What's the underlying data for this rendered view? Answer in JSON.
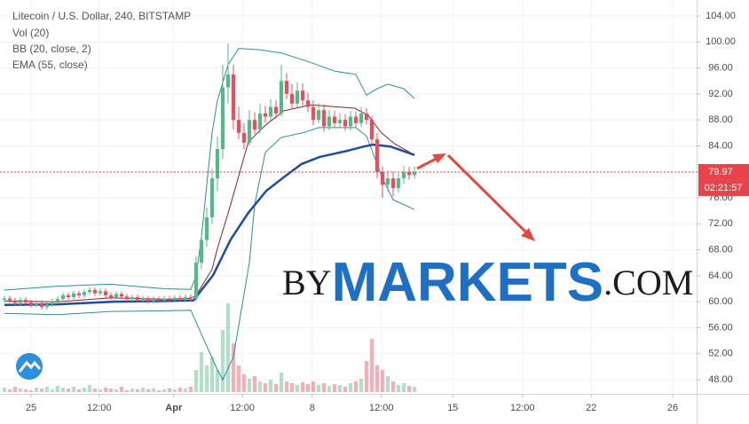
{
  "chart_data": {
    "type": "candlestick",
    "legend": [
      "Litecoin / U.S. Dollar, 240, BITSTAMP",
      "Vol (20)",
      "BB (20, close, 2)",
      "EMA (55, close)"
    ],
    "watermark": {
      "prefix": "BY",
      "main": "MARKETS",
      "suffix": ".COM"
    },
    "x": [
      0,
      1,
      2,
      3,
      4,
      5,
      6,
      7,
      8,
      9,
      10,
      11,
      12,
      13,
      14,
      15,
      16,
      17,
      18,
      19,
      20,
      21,
      22,
      23,
      24,
      25,
      26,
      27,
      28,
      29,
      30,
      31,
      32,
      33,
      34,
      35,
      36,
      37,
      38,
      39,
      40,
      41,
      42,
      43,
      44,
      45,
      46,
      47,
      48,
      49,
      50,
      51,
      52,
      53,
      54,
      55,
      56,
      57,
      58,
      59,
      60,
      61,
      62,
      63,
      64,
      65,
      66,
      67,
      68,
      69,
      70,
      71,
      72,
      73,
      74,
      75,
      76,
      77
    ],
    "open": [
      60.3,
      60.5,
      60.2,
      59.8,
      60.3,
      59.9,
      59.5,
      59.8,
      59.2,
      59.6,
      60.1,
      60.4,
      61.0,
      60.7,
      61.3,
      61.0,
      61.5,
      61.8,
      61.3,
      61.6,
      61.0,
      60.7,
      61.2,
      60.8,
      60.4,
      60.7,
      60.3,
      60.5,
      60.1,
      60.4,
      60.2,
      60.5,
      60.3,
      60.6,
      60.4,
      60.7,
      60.5,
      66,
      69.5,
      73,
      79,
      83.5,
      93,
      95,
      88,
      86,
      84.5,
      88,
      86.5,
      89,
      88.5,
      90,
      89,
      94,
      92,
      90.5,
      92.5,
      91,
      90,
      88,
      89.5,
      87,
      88.5,
      87.5,
      88,
      87,
      88.5,
      87.5,
      89,
      88,
      85,
      80,
      78,
      79,
      77.5,
      79,
      80,
      79.5
    ],
    "high": [
      60.9,
      60.9,
      60.6,
      60.7,
      60.7,
      60.3,
      60.2,
      60.2,
      60.0,
      60.5,
      60.8,
      61.4,
      61.4,
      61.7,
      61.7,
      61.9,
      62.2,
      62.2,
      62.0,
      62.0,
      61.4,
      61.6,
      61.6,
      61.2,
      61.1,
      61.1,
      60.9,
      60.9,
      60.8,
      60.8,
      60.9,
      60.9,
      61.0,
      61.0,
      61.1,
      61.1,
      67.0,
      70.5,
      74.5,
      80.5,
      85.5,
      96.5,
      99.8,
      96.5,
      90.0,
      87.5,
      89.5,
      89.2,
      90.5,
      90.2,
      91.2,
      91.0,
      96.5,
      95.2,
      93.5,
      93.8,
      93.6,
      92.2,
      91.0,
      90.5,
      90.4,
      89.5,
      89.4,
      89.0,
      88.9,
      89.4,
      89.3,
      90.0,
      89.8,
      88.6,
      86.0,
      80.8,
      80.2,
      80.0,
      79.8,
      80.9,
      80.8,
      80.8
    ],
    "low": [
      59.9,
      59.8,
      59.4,
      59.4,
      59.5,
      59.1,
      59.1,
      58.8,
      58.8,
      59.2,
      59.7,
      60.0,
      60.3,
      60.3,
      60.6,
      60.6,
      61.1,
      60.9,
      60.9,
      60.6,
      60.3,
      60.3,
      60.4,
      60.0,
      60.0,
      59.9,
      59.9,
      59.7,
      59.7,
      59.8,
      59.8,
      59.9,
      59.9,
      60.0,
      60.0,
      60.1,
      60.1,
      65.0,
      68.5,
      72.0,
      77.0,
      82.0,
      90.5,
      86.5,
      85.0,
      83.5,
      84.0,
      85.8,
      85.9,
      87.5,
      87.9,
      88.2,
      88.5,
      91.2,
      89.8,
      89.9,
      90.2,
      89.2,
      87.2,
      87.5,
      86.2,
      86.4,
      86.8,
      86.9,
      86.3,
      86.4,
      86.8,
      86.9,
      87.3,
      84.2,
      79.0,
      76.0,
      77.0,
      76.2,
      76.8,
      78.2,
      78.8,
      78.9
    ],
    "close": [
      60.5,
      60.2,
      59.8,
      60.3,
      59.9,
      59.5,
      59.8,
      59.2,
      59.6,
      60.1,
      60.4,
      61.0,
      60.7,
      61.3,
      61.0,
      61.5,
      61.8,
      61.3,
      61.6,
      61.0,
      60.7,
      61.2,
      60.8,
      60.4,
      60.7,
      60.3,
      60.5,
      60.1,
      60.4,
      60.2,
      60.5,
      60.3,
      60.6,
      60.4,
      60.7,
      60.5,
      66,
      69.5,
      73,
      79,
      83.5,
      93,
      95,
      88,
      86,
      84.5,
      88,
      86.5,
      89,
      88.5,
      90,
      89,
      94,
      92,
      90.5,
      92.5,
      91,
      90,
      88,
      89.5,
      87,
      88.5,
      87.5,
      88,
      87,
      88.5,
      87.5,
      89,
      88,
      85,
      80,
      78,
      79,
      77.5,
      79,
      80,
      79.5,
      79.97
    ],
    "volume": [
      5,
      3,
      6,
      4,
      3,
      2,
      5,
      4,
      6,
      3,
      7,
      5,
      4,
      6,
      3,
      5,
      8,
      4,
      3,
      5,
      4,
      3,
      6,
      2,
      4,
      3,
      5,
      3,
      4,
      2,
      3,
      4,
      3,
      5,
      4,
      6,
      25,
      45,
      30,
      40,
      25,
      70,
      100,
      55,
      30,
      20,
      15,
      18,
      12,
      10,
      14,
      9,
      22,
      12,
      10,
      8,
      11,
      9,
      12,
      8,
      10,
      7,
      9,
      8,
      6,
      10,
      12,
      15,
      35,
      60,
      30,
      25,
      18,
      12,
      8,
      10,
      7,
      6
    ],
    "up_color": "#53b987",
    "down_color": "#eb4d5c",
    "lines": [
      {
        "color": "#2a8f96",
        "width": 1,
        "x": [
          0,
          10,
          20,
          30,
          35,
          36,
          37,
          38,
          39,
          40,
          42,
          44,
          48,
          52,
          57,
          62,
          66,
          68,
          70,
          72,
          75,
          77
        ],
        "values": [
          61.8,
          62.4,
          62.7,
          62.0,
          61.9,
          64,
          70,
          78,
          86,
          91,
          96.5,
          99,
          98.8,
          98.3,
          97.0,
          95.5,
          95.0,
          91.8,
          92.8,
          93.5,
          92.8,
          91.3
        ]
      },
      {
        "color": "#2a8f96",
        "width": 1,
        "x": [
          0,
          10,
          20,
          30,
          35,
          37,
          40,
          41,
          43,
          46,
          47,
          49,
          52,
          56,
          59,
          66,
          68,
          71,
          73,
          77
        ],
        "values": [
          58.2,
          58.0,
          58.5,
          58.6,
          58.7,
          55,
          49.5,
          48.0,
          51.5,
          66,
          75,
          83,
          85.3,
          86.0,
          86.8,
          86.8,
          85.5,
          79,
          75.7,
          74.2
        ]
      },
      {
        "color": "#8b2323",
        "width": 1,
        "x": [
          0,
          10,
          20,
          30,
          35,
          36,
          39,
          40,
          42.5,
          45.8,
          49.2,
          52.5,
          57.5,
          62.5,
          65.8,
          68.3,
          70.8,
          73.3,
          77
        ],
        "values": [
          60.1,
          60.0,
          60.6,
          60.4,
          60.5,
          61,
          65,
          68.2,
          75,
          84.6,
          87.3,
          89.4,
          90.3,
          90.0,
          89.8,
          88.7,
          86.0,
          84.3,
          82.6
        ]
      },
      {
        "color": "#1f4aa8",
        "width": 2.5,
        "x": [
          0,
          10,
          20,
          30,
          35.5,
          39.2,
          42.5,
          45.8,
          49.2,
          52.5,
          55.8,
          59.2,
          64.2,
          67.5,
          69.2,
          72.5,
          77
        ],
        "values": [
          59.5,
          59.6,
          60.0,
          60.1,
          60.2,
          64.1,
          69.6,
          73.7,
          77.1,
          79.2,
          81.2,
          82.3,
          83.2,
          83.9,
          84.2,
          83.9,
          82.6
        ]
      }
    ],
    "last_price": 79.97,
    "countdown": "02:21:57",
    "last_price_color": "#e8434a",
    "xlim": [
      -0.83,
      130
    ],
    "ylim": [
      46.09,
      106.46
    ],
    "xticks": [
      {
        "value": 5,
        "label": "25"
      },
      {
        "value": 17.8,
        "label": "12:00"
      },
      {
        "value": 31.8,
        "label": "Apr"
      },
      {
        "value": 44.7,
        "label": "12:00"
      },
      {
        "value": 57.8,
        "label": "8"
      },
      {
        "value": 70.8,
        "label": "12:00"
      },
      {
        "value": 84.2,
        "label": "15"
      },
      {
        "value": 97.3,
        "label": "12:00"
      },
      {
        "value": 110.2,
        "label": "22"
      },
      {
        "value": 125.5,
        "label": "26"
      }
    ],
    "yticks": [
      {
        "value": 48,
        "label": "48.00"
      },
      {
        "value": 52,
        "label": "52.00"
      },
      {
        "value": 56,
        "label": "56.00"
      },
      {
        "value": 60,
        "label": "60.00"
      },
      {
        "value": 64,
        "label": "64.00"
      },
      {
        "value": 68,
        "label": "68.00"
      },
      {
        "value": 72,
        "label": "72.00"
      },
      {
        "value": 76,
        "label": "76.00"
      },
      {
        "value": 80,
        "label": "80.00"
      },
      {
        "value": 84,
        "label": "84.00"
      },
      {
        "value": 88,
        "label": "88.00"
      },
      {
        "value": 92,
        "label": "92.00"
      },
      {
        "value": 96,
        "label": "96.00"
      },
      {
        "value": 100,
        "label": "100.00"
      },
      {
        "value": 104,
        "label": "104.00"
      }
    ],
    "grid": true
  }
}
